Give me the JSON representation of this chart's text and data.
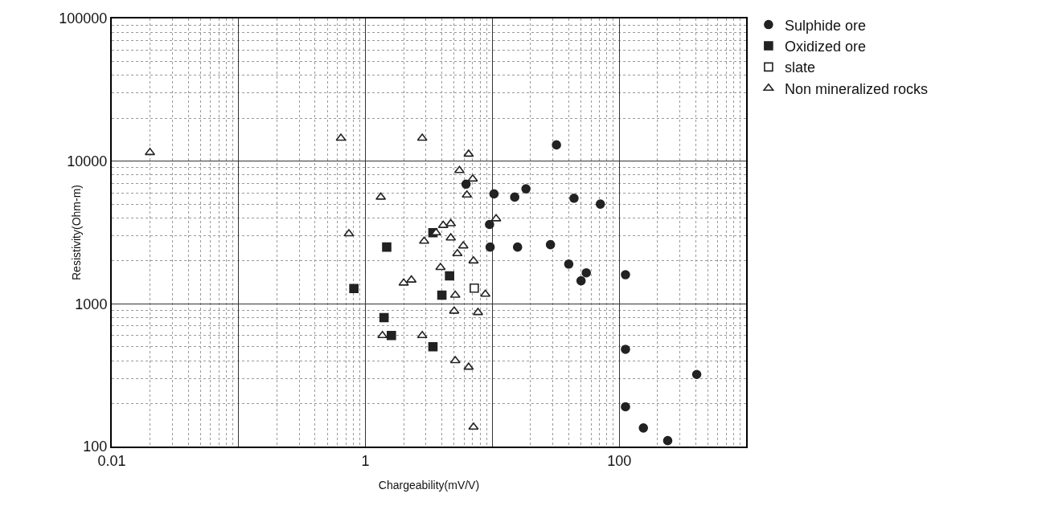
{
  "chart_data": {
    "type": "scatter",
    "xlabel": "Chargeability(mV/V)",
    "ylabel": "Resistivity(Ohm-m)",
    "log": "xy",
    "grid": true,
    "legend": "top right",
    "xlim": [
      0.01,
      1000
    ],
    "xticks": [
      0.01,
      {
        "value": 0.1,
        "label": null
      },
      1,
      {
        "value": 10,
        "label": null
      },
      100,
      {
        "value": 1000,
        "label": null
      }
    ],
    "ylim": [
      100,
      100000
    ],
    "yticks": [
      100,
      1000,
      10000,
      100000
    ],
    "series": [
      {
        "name": "Sulphide ore",
        "color": "#222222",
        "marker": "circle",
        "x": [
          32,
          10.3,
          15,
          18.4,
          44,
          71,
          6.2,
          9.5,
          9.6,
          15.8,
          28.7,
          40,
          55,
          50,
          112,
          112,
          408,
          112,
          155,
          241
        ],
        "values": [
          13000,
          5900,
          5600,
          6400,
          5500,
          5000,
          6900,
          3600,
          2500,
          2500,
          2600,
          1900,
          1650,
          1450,
          1600,
          480,
          320,
          190,
          135,
          110
        ]
      },
      {
        "name": "Oxidized ore",
        "color": "#222222",
        "marker": "square",
        "x": [
          1.47,
          0.81,
          3.4,
          4.6,
          4.0,
          1.4,
          1.6,
          3.4
        ],
        "values": [
          2500,
          1280,
          3150,
          1570,
          1150,
          800,
          600,
          500
        ]
      },
      {
        "name": "slate",
        "color": "#ffffff",
        "marker": "square",
        "x": [
          7.2
        ],
        "values": [
          1290
        ]
      },
      {
        "name": "Non mineralized rocks",
        "color": "#ffffff",
        "marker": "triangle",
        "x": [
          0.02,
          0.64,
          2.8,
          6.5,
          5.5,
          7.0,
          6.3,
          1.32,
          0.74,
          10.7,
          3.6,
          4.1,
          4.7,
          2.9,
          4.7,
          5.9,
          5.3,
          7.1,
          3.9,
          2.0,
          2.3,
          5.1,
          8.8,
          5.0,
          7.7,
          1.36,
          2.8,
          5.1,
          6.5,
          7.1
        ],
        "values": [
          11500,
          14500,
          14500,
          11200,
          8600,
          7500,
          5800,
          5600,
          3100,
          3950,
          3150,
          3550,
          3650,
          2750,
          2900,
          2550,
          2250,
          2000,
          1800,
          1400,
          1470,
          1150,
          1170,
          890,
          870,
          600,
          600,
          400,
          360,
          137
        ]
      }
    ]
  }
}
